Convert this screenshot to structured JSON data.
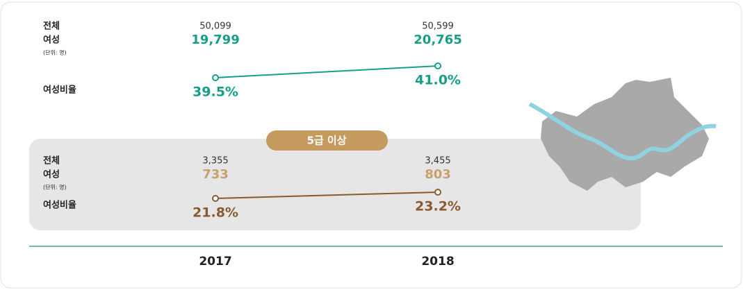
{
  "years": [
    "2017",
    "2018"
  ],
  "groups": [
    {
      "labels": [
        "전체",
        "여성",
        "(단위: 명)",
        "여성비율"
      ],
      "total": [
        50099,
        50599
      ],
      "total_labels": [
        "50,099",
        "50,599"
      ],
      "female": [
        19799,
        20765
      ],
      "female_labels": [
        "19,799",
        "20,765"
      ],
      "ratio": [
        39.5,
        41.0
      ],
      "ratio_labels": [
        "39.5%",
        "41.0%"
      ]
    },
    {
      "badge": "5급 이상",
      "labels": [
        "전체",
        "여성",
        "(단위: 명)",
        "여성비율"
      ],
      "total": [
        3355,
        3455
      ],
      "total_labels": [
        "3,355",
        "3,455"
      ],
      "female": [
        733,
        803
      ],
      "female_labels": [
        "733",
        "803"
      ],
      "ratio": [
        21.8,
        23.2
      ],
      "ratio_labels": [
        "21.8%",
        "23.2%"
      ]
    }
  ]
}
